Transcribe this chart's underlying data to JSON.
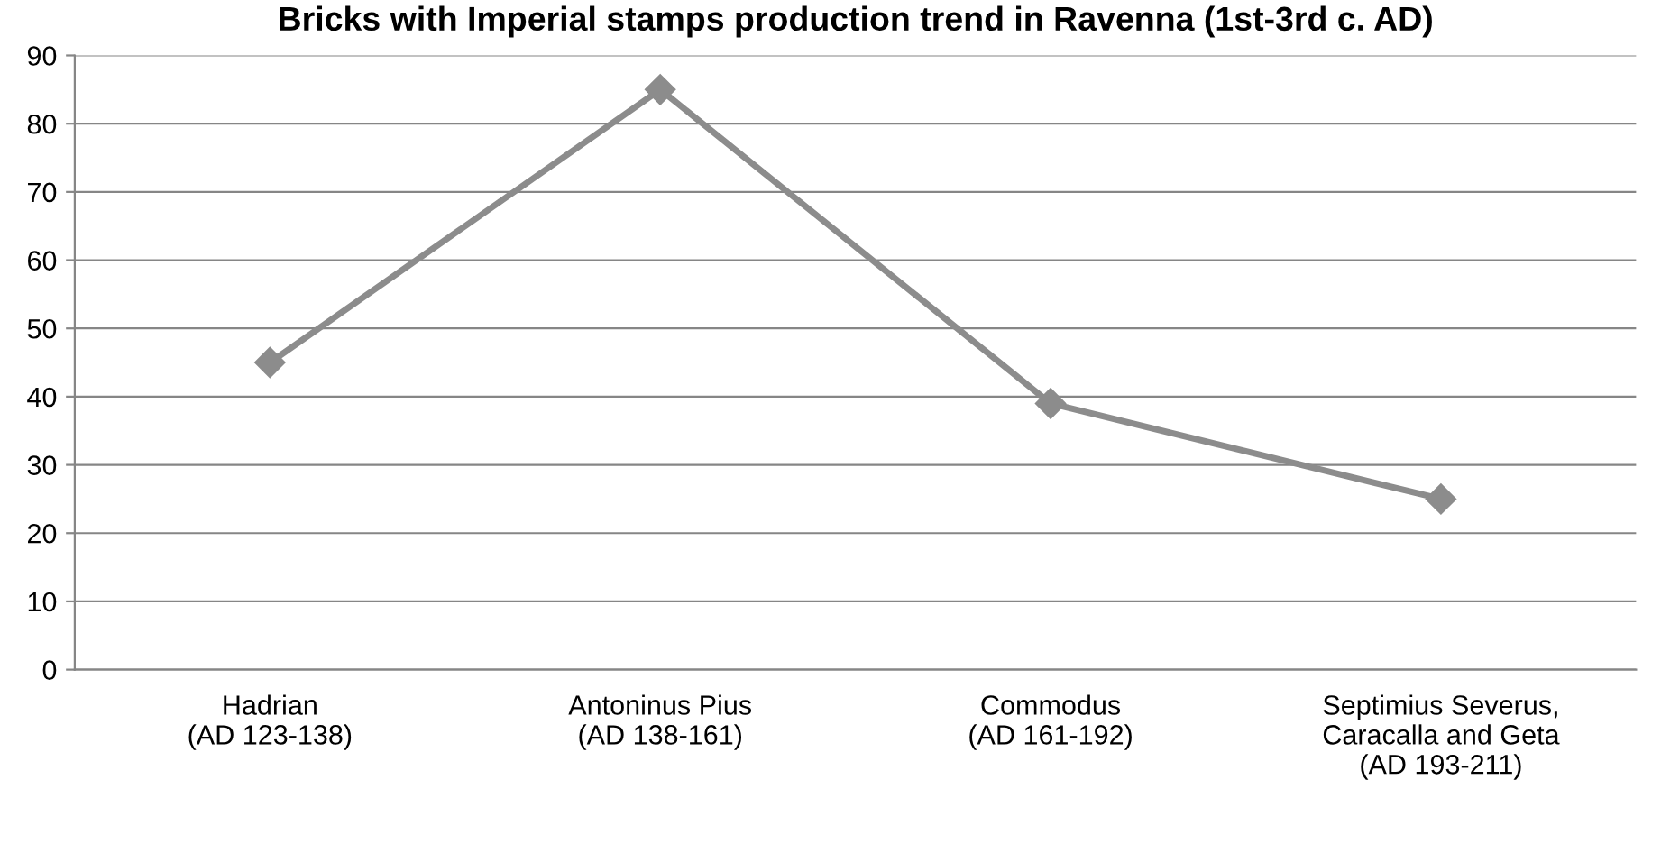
{
  "chart_data": {
    "type": "line",
    "title": "Bricks with Imperial stamps production trend in Ravenna (1st-3rd c. AD)",
    "categories": [
      "Hadrian\n(AD 123-138)",
      "Antoninus Pius\n(AD 138-161)",
      "Commodus\n(AD 161-192)",
      "Septimius Severus,\nCaracalla and Geta\n(AD 193-211)"
    ],
    "series": [
      {
        "color": "#8c8c8c",
        "values": [
          45,
          85,
          39,
          25
        ]
      }
    ],
    "ylim": [
      0,
      90
    ],
    "yticks": [
      0,
      10,
      20,
      30,
      40,
      50,
      60,
      70,
      80,
      90
    ],
    "grid": "y",
    "marker": "diamond",
    "line_style": "solid",
    "legend": false
  }
}
